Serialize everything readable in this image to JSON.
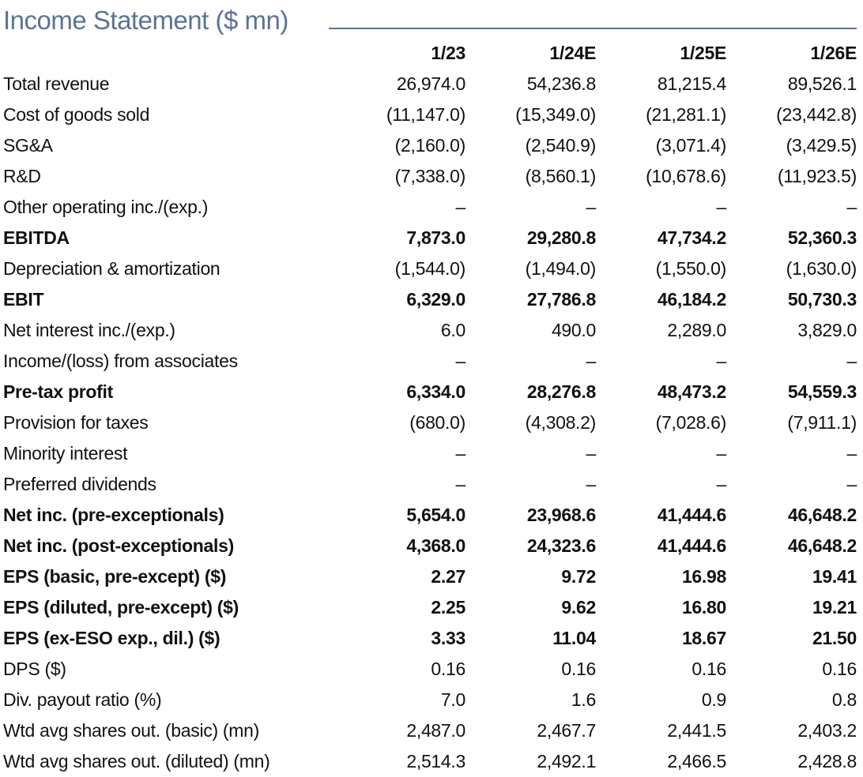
{
  "title": "Income Statement ($ mn)",
  "columns": [
    "1/23",
    "1/24E",
    "1/25E",
    "1/26E"
  ],
  "rows": [
    {
      "label": "Total revenue",
      "bold": false,
      "values": [
        "26,974.0",
        "54,236.8",
        "81,215.4",
        "89,526.1"
      ]
    },
    {
      "label": "Cost of goods sold",
      "bold": false,
      "values": [
        "(11,147.0)",
        "(15,349.0)",
        "(21,281.1)",
        "(23,442.8)"
      ]
    },
    {
      "label": "SG&A",
      "bold": false,
      "values": [
        "(2,160.0)",
        "(2,540.9)",
        "(3,071.4)",
        "(3,429.5)"
      ]
    },
    {
      "label": "R&D",
      "bold": false,
      "values": [
        "(7,338.0)",
        "(8,560.1)",
        "(10,678.6)",
        "(11,923.5)"
      ]
    },
    {
      "label": "Other operating inc./(exp.)",
      "bold": false,
      "values": [
        "–",
        "–",
        "–",
        "–"
      ]
    },
    {
      "label": "EBITDA",
      "bold": true,
      "values": [
        "7,873.0",
        "29,280.8",
        "47,734.2",
        "52,360.3"
      ]
    },
    {
      "label": "Depreciation & amortization",
      "bold": false,
      "values": [
        "(1,544.0)",
        "(1,494.0)",
        "(1,550.0)",
        "(1,630.0)"
      ]
    },
    {
      "label": "EBIT",
      "bold": true,
      "values": [
        "6,329.0",
        "27,786.8",
        "46,184.2",
        "50,730.3"
      ]
    },
    {
      "label": "Net interest inc./(exp.)",
      "bold": false,
      "values": [
        "6.0",
        "490.0",
        "2,289.0",
        "3,829.0"
      ]
    },
    {
      "label": "Income/(loss) from associates",
      "bold": false,
      "values": [
        "–",
        "–",
        "–",
        "–"
      ]
    },
    {
      "label": "Pre-tax profit",
      "bold": true,
      "values": [
        "6,334.0",
        "28,276.8",
        "48,473.2",
        "54,559.3"
      ]
    },
    {
      "label": "Provision for taxes",
      "bold": false,
      "values": [
        "(680.0)",
        "(4,308.2)",
        "(7,028.6)",
        "(7,911.1)"
      ]
    },
    {
      "label": "Minority interest",
      "bold": false,
      "values": [
        "–",
        "–",
        "–",
        "–"
      ]
    },
    {
      "label": "Preferred dividends",
      "bold": false,
      "values": [
        "–",
        "–",
        "–",
        "–"
      ]
    },
    {
      "label": "Net inc. (pre-exceptionals)",
      "bold": true,
      "values": [
        "5,654.0",
        "23,968.6",
        "41,444.6",
        "46,648.2"
      ]
    },
    {
      "label": "Net inc. (post-exceptionals)",
      "bold": true,
      "values": [
        "4,368.0",
        "24,323.6",
        "41,444.6",
        "46,648.2"
      ]
    },
    {
      "label": "EPS (basic, pre-except) ($)",
      "bold": true,
      "values": [
        "2.27",
        "9.72",
        "16.98",
        "19.41"
      ]
    },
    {
      "label": "EPS (diluted, pre-except) ($)",
      "bold": true,
      "values": [
        "2.25",
        "9.62",
        "16.80",
        "19.21"
      ]
    },
    {
      "label": "EPS (ex-ESO exp., dil.) ($)",
      "bold": true,
      "values": [
        "3.33",
        "11.04",
        "18.67",
        "21.50"
      ]
    },
    {
      "label": "DPS ($)",
      "bold": false,
      "values": [
        "0.16",
        "0.16",
        "0.16",
        "0.16"
      ]
    },
    {
      "label": "Div. payout ratio (%)",
      "bold": false,
      "values": [
        "7.0",
        "1.6",
        "0.9",
        "0.8"
      ]
    },
    {
      "label": "Wtd avg shares out. (basic) (mn)",
      "bold": false,
      "values": [
        "2,487.0",
        "2,467.7",
        "2,441.5",
        "2,403.2"
      ]
    },
    {
      "label": "Wtd avg shares out. (diluted) (mn)",
      "bold": false,
      "values": [
        "2,514.3",
        "2,492.1",
        "2,466.5",
        "2,428.8"
      ]
    }
  ],
  "colors": {
    "title": "#5b7396",
    "text": "#111111"
  }
}
